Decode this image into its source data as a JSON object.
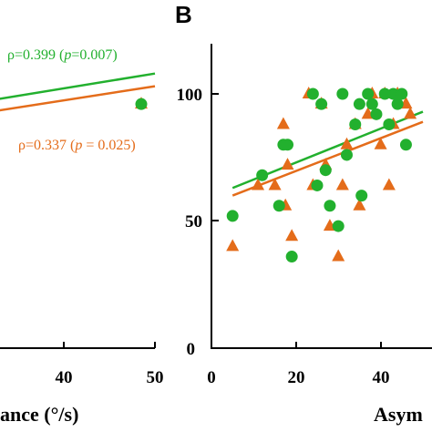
{
  "chart_data": [
    {
      "type": "scatter",
      "xlabel": "ance (°/s)",
      "xlim": [
        0,
        50
      ],
      "xticks": [
        "40",
        "50"
      ],
      "annotations": [
        {
          "text": "ρ=0.399 (",
          "italic": "p",
          "rest": "=0.007)",
          "color": "#22b02e"
        },
        {
          "text": "ρ=0.337 (",
          "italic": "p",
          "rest": " = 0.025)",
          "color": "#e46c1a"
        }
      ],
      "series": [
        {
          "marker": "circle",
          "color": "#22b02e",
          "points": [
            [
              47.5,
              96
            ]
          ],
          "fit": {
            "x": [
              20,
              50
            ],
            "y": [
              97.5,
              108
            ]
          }
        },
        {
          "marker": "triangle",
          "color": "#e46c1a",
          "points": [
            [
              47.5,
              96
            ]
          ],
          "fit": {
            "x": [
              20,
              50
            ],
            "y": [
              93,
              103
            ]
          }
        }
      ]
    },
    {
      "type": "scatter",
      "panel": "B",
      "xlabel": "Asym",
      "xlim": [
        0,
        50
      ],
      "ylim": [
        0,
        100
      ],
      "xticks": [
        "0",
        "20",
        "40"
      ],
      "yticks": [
        "0",
        "50",
        "100"
      ],
      "series": [
        {
          "marker": "circle",
          "color": "#22b02e",
          "points": [
            [
              5,
              52
            ],
            [
              12,
              68
            ],
            [
              16,
              56
            ],
            [
              17,
              80
            ],
            [
              18,
              80
            ],
            [
              19,
              36
            ],
            [
              24,
              100
            ],
            [
              25,
              64
            ],
            [
              26,
              96
            ],
            [
              27,
              70
            ],
            [
              28,
              56
            ],
            [
              30,
              48
            ],
            [
              31,
              100
            ],
            [
              32,
              76
            ],
            [
              34,
              88
            ],
            [
              35,
              96
            ],
            [
              35.5,
              60
            ],
            [
              37,
              100
            ],
            [
              38,
              96
            ],
            [
              39,
              92
            ],
            [
              41,
              100
            ],
            [
              42,
              88
            ],
            [
              43,
              100
            ],
            [
              44,
              96
            ],
            [
              45,
              100
            ],
            [
              46,
              80
            ]
          ],
          "fit": {
            "x": [
              5,
              50
            ],
            "y": [
              63,
              93
            ]
          }
        },
        {
          "marker": "triangle",
          "color": "#e46c1a",
          "points": [
            [
              5,
              40
            ],
            [
              11,
              64
            ],
            [
              15,
              64
            ],
            [
              17,
              88
            ],
            [
              17.5,
              56
            ],
            [
              18,
              72
            ],
            [
              19,
              44
            ],
            [
              23,
              100
            ],
            [
              24,
              64
            ],
            [
              26,
              96
            ],
            [
              27,
              72
            ],
            [
              28,
              48
            ],
            [
              30,
              36
            ],
            [
              31,
              64
            ],
            [
              32,
              80
            ],
            [
              34,
              88
            ],
            [
              35,
              56
            ],
            [
              37,
              92
            ],
            [
              38,
              100
            ],
            [
              40,
              80
            ],
            [
              41,
              100
            ],
            [
              42,
              64
            ],
            [
              43,
              88
            ],
            [
              44,
              100
            ],
            [
              46,
              96
            ],
            [
              47,
              92
            ]
          ],
          "fit": {
            "x": [
              5,
              50
            ],
            "y": [
              60,
              89
            ]
          }
        }
      ]
    }
  ]
}
